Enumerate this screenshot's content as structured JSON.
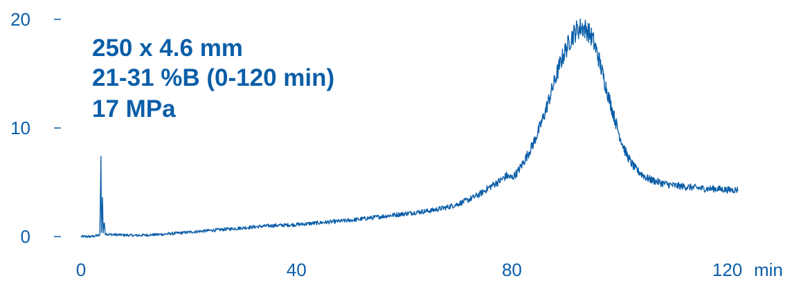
{
  "colors": {
    "trace": "#0b5ea8",
    "text": "#0b5ea8",
    "background": "#ffffff"
  },
  "chart_data": {
    "type": "line",
    "title": "",
    "xlabel": "",
    "x_unit_label": "min",
    "ylabel": "",
    "xlim": [
      0,
      120
    ],
    "ylim": [
      0,
      20
    ],
    "xticks": [
      0,
      40,
      80,
      120
    ],
    "yticks": [
      0,
      10,
      20
    ],
    "grid": false,
    "legend": "none",
    "annotations": [
      "250 x 4.6 mm",
      "21-31 %B (0-120 min)",
      "17 MPa"
    ],
    "series": [
      {
        "points": [
          [
            0,
            0.0
          ],
          [
            1,
            0.0
          ],
          [
            2,
            0.0
          ],
          [
            3,
            0.1
          ],
          [
            3.5,
            0.1
          ],
          [
            3.7,
            7.3
          ],
          [
            3.8,
            0.5
          ],
          [
            4.0,
            3.5
          ],
          [
            4.1,
            0.4
          ],
          [
            4.3,
            1.3
          ],
          [
            4.5,
            0.3
          ],
          [
            5,
            0.2
          ],
          [
            10,
            0.1
          ],
          [
            15,
            0.2
          ],
          [
            20,
            0.4
          ],
          [
            25,
            0.6
          ],
          [
            30,
            0.8
          ],
          [
            35,
            1.0
          ],
          [
            40,
            1.1
          ],
          [
            45,
            1.3
          ],
          [
            50,
            1.5
          ],
          [
            55,
            1.8
          ],
          [
            60,
            2.1
          ],
          [
            65,
            2.4
          ],
          [
            68,
            2.7
          ],
          [
            70,
            3.0
          ],
          [
            72,
            3.4
          ],
          [
            74,
            3.9
          ],
          [
            76,
            4.6
          ],
          [
            78,
            5.2
          ],
          [
            79,
            5.6
          ],
          [
            80,
            5.4
          ],
          [
            81,
            5.9
          ],
          [
            82,
            6.7
          ],
          [
            83,
            7.6
          ],
          [
            84,
            8.6
          ],
          [
            85,
            9.8
          ],
          [
            86,
            11.2
          ],
          [
            87,
            12.8
          ],
          [
            88,
            14.4
          ],
          [
            89,
            16.0
          ],
          [
            90,
            17.2
          ],
          [
            91,
            18.3
          ],
          [
            92,
            19.0
          ],
          [
            93,
            19.3
          ],
          [
            94,
            19.0
          ],
          [
            95,
            18.2
          ],
          [
            96,
            16.6
          ],
          [
            97,
            14.7
          ],
          [
            98,
            12.8
          ],
          [
            99,
            11.0
          ],
          [
            100,
            9.3
          ],
          [
            101,
            7.9
          ],
          [
            102,
            6.9
          ],
          [
            103,
            6.2
          ],
          [
            104,
            5.8
          ],
          [
            105,
            5.4
          ],
          [
            106,
            5.2
          ],
          [
            108,
            4.9
          ],
          [
            110,
            4.7
          ],
          [
            112,
            4.6
          ],
          [
            114,
            4.5
          ],
          [
            116,
            4.4
          ],
          [
            118,
            4.4
          ],
          [
            120,
            4.3
          ],
          [
            122,
            4.3
          ]
        ]
      }
    ]
  }
}
